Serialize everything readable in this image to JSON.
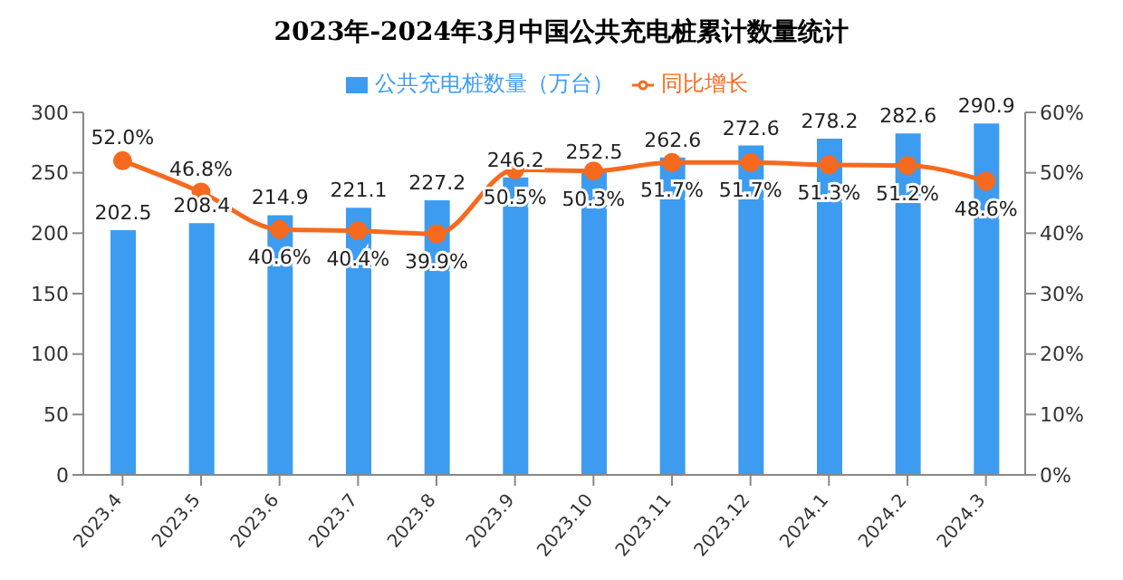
{
  "chart_data": {
    "type": "bar",
    "title": "2023年-2024年3月中国公共充电桩累计数量统计",
    "categories": [
      "2023.4",
      "2023.5",
      "2023.6",
      "2023.7",
      "2023.8",
      "2023.9",
      "2023.10",
      "2023.11",
      "2023.12",
      "2024.1",
      "2024.2",
      "2024.3"
    ],
    "series": [
      {
        "name": "公共充电桩数量（万台）",
        "color": "#3d9cf0",
        "values": [
          202.5,
          208.4,
          214.9,
          221.1,
          227.2,
          246.2,
          252.5,
          262.6,
          272.6,
          278.2,
          282.6,
          290.9
        ],
        "value_labels": [
          "202.5",
          "208.4",
          "214.9",
          "221.1",
          "227.2",
          "246.2",
          "252.5",
          "262.6",
          "272.6",
          "278.2",
          "282.6",
          "290.9"
        ]
      },
      {
        "name": "同比增长",
        "type": "line",
        "axis": "y2",
        "color": "#f56a1e",
        "values": [
          52.0,
          46.8,
          40.6,
          40.4,
          39.9,
          50.5,
          50.3,
          51.7,
          51.7,
          51.3,
          51.2,
          48.6
        ],
        "value_labels": [
          "52.0%",
          "46.8%",
          "40.6%",
          "40.4%",
          "39.9%",
          "50.5%",
          "50.3%",
          "51.7%",
          "51.7%",
          "51.3%",
          "51.2%",
          "48.6%"
        ]
      }
    ],
    "ylim": [
      0,
      300
    ],
    "yticks": [
      0,
      50,
      100,
      150,
      200,
      250,
      300
    ],
    "y2lim": [
      0,
      60
    ],
    "y2ticks": [
      {
        "value": 0,
        "label": "0%"
      },
      {
        "value": 10,
        "label": "10%"
      },
      {
        "value": 20,
        "label": "20%"
      },
      {
        "value": 30,
        "label": "30%"
      },
      {
        "value": 40,
        "label": "40%"
      },
      {
        "value": 50,
        "label": "50%"
      },
      {
        "value": 60,
        "label": "60%"
      }
    ],
    "legend": "top",
    "marker": "circle"
  }
}
